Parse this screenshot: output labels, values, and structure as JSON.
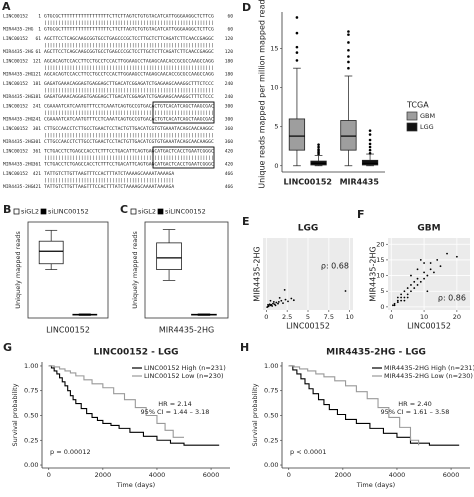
{
  "chart_data": [
    {
      "type": "alignment",
      "label": "A",
      "top_name": "LINC00152",
      "bottom_name": "MIR4435-2HG",
      "match": "||||||||||||||||||||||||||||||||||||||||||||||||||||||||||||",
      "blocks": [
        {
          "start": 1,
          "end": 60,
          "top": "GTGCGCTTTTTTTTTTTTTTTTTCTTCTTAGTCTGTGTACATCATTGGGAAGGCTCTTCG",
          "bottom": "GTGCGCTTTTTTTTTTTTTTTTTCTTCTTAGTCTGTGTACATCATTGGGAAGGCTCTTCG"
        },
        {
          "start": 61,
          "end": 120,
          "top": "AGCTTCCTCAGCAAGCGGTGCCTGAGCCCGCTCCTTGCTCTTCAGATCTTCAACCGAGGC",
          "bottom": "AGCTTCCTCAGCAAGCGGTGCCTGAGCCCGCTCCTTGCTCTTCAGATCTTCAACCGAGGC"
        },
        {
          "start": 121,
          "end": 180,
          "top": "AGCACAGTCCACCTTCCTGCCTCCACTTGGAAGCCTAGAGCAACACCGCGCCAAGCCAGG",
          "bottom": "AGCACAGTCCACCTTCCTGCCTCCACTTGGAAGCCTAGAGCAACACCGCGCCAAGCCAGG"
        },
        {
          "start": 181,
          "end": 240,
          "top": "GAGATGAAACAGGAGTGAGGAGCTTGACATCGGAGATCTGAGAAGCAAAGGCTTTCTCCC",
          "bottom": "GAGATGAAACAGGAGTGAGGAGCTTGACATCGGAGATCTGAGAAGCAAAGGCTTTCTCCC"
        },
        {
          "start": 241,
          "end": 300,
          "top": "CGAAAATCATCAATGTTTCCTCAAATCAGTGCCGTGACACTGTCACATCAGCTAAGCGAC",
          "bottom": "CGAAAATCATCAATGTTTCCTCAAATCAGTGCCGTGACACTGTCACATCAGCTAAGCGAC"
        },
        {
          "start": 301,
          "end": 360,
          "top": "CTTGCCAACCTCTTGCCTGAACTCCTACTGTTGACATCGTGTGAAATACAGCAACAAGGC",
          "bottom": "CTTGCCAACCTCTTGCCTGAACTCCTACTGTTGACATCGTGTGAAATACAGCAACAAGGC"
        },
        {
          "start": 361,
          "end": 420,
          "top": "TCTGACCTCTGAGCCACCTCTTTCCTGACATTCAGTGAGCATGACTCACCTGAATCGGGC",
          "bottom": "TCTGACCTCTGAGCCACCTCTTTCCTGACATTCAGTGAGCATGACTCACCTGAATCGGGC"
        },
        {
          "start": 421,
          "end": 466,
          "top": "TATTGTCTTGTTAAGTTTCCACTTTATCTAAAAGCAAAATAAAAGA",
          "bottom": "TATTGTCTTGTTAAGTTTCCACTTTATCTAAAAGCAAAATAAAAGA"
        }
      ]
    },
    {
      "type": "box",
      "label": "B",
      "ylabel": "Uniquely mapped reads",
      "categories": [
        "LINC00152"
      ],
      "ylim": [
        0,
        11.5
      ],
      "legend": "top",
      "frame": true,
      "series": [
        {
          "name": "siGL2",
          "color": "#ffffff",
          "boxes": [
            {
              "min": 5.8,
              "q1": 6.5,
              "median": 8,
              "q3": 9.2,
              "max": 10.5,
              "outliers": []
            }
          ]
        },
        {
          "name": "siLINC00152",
          "color": "#000000",
          "boxes": [
            {
              "min": 0.3,
              "q1": 0.35,
              "median": 0.4,
              "q3": 0.45,
              "max": 0.5,
              "outliers": []
            }
          ]
        }
      ]
    },
    {
      "type": "box",
      "label": "C",
      "ylabel": "Uniquely mapped reads",
      "categories": [
        "MIR4435-2HG"
      ],
      "ylim": [
        0,
        11.5
      ],
      "legend": "top",
      "frame": true,
      "series": [
        {
          "name": "siGL2",
          "color": "#ffffff",
          "boxes": [
            {
              "min": 4.5,
              "q1": 5.8,
              "median": 7.2,
              "q3": 9,
              "max": 10.6,
              "outliers": []
            }
          ]
        },
        {
          "name": "siLINC00152",
          "color": "#000000",
          "boxes": [
            {
              "min": 0.3,
              "q1": 0.35,
              "median": 0.4,
              "q3": 0.45,
              "max": 0.5,
              "outliers": []
            }
          ]
        }
      ]
    },
    {
      "type": "box",
      "label": "D",
      "ylabel": "Unique reads mapped per million mapped reads",
      "categories": [
        "LINC00152",
        "MIR4435"
      ],
      "ylim": [
        -0.8,
        19.7
      ],
      "yticks": [
        0,
        5,
        10,
        15
      ],
      "legend": "right",
      "legend_title": "TCGA",
      "frame": false,
      "series": [
        {
          "name": "GBM",
          "color": "#9e9e9e",
          "boxes": [
            {
              "min": 0,
              "q1": 2,
              "median": 3.8,
              "q3": 6,
              "max": 12.5,
              "outliers": [
                13.5,
                14.5,
                15.2,
                17,
                19
              ]
            },
            {
              "min": 0,
              "q1": 2,
              "median": 3.8,
              "q3": 5.8,
              "max": 11.5,
              "outliers": [
                12.5,
                13.3,
                14,
                14.8,
                15.8,
                16.8,
                17.2
              ]
            }
          ]
        },
        {
          "name": "LGG",
          "color": "#111111",
          "boxes": [
            {
              "min": 0,
              "q1": 0.1,
              "median": 0.3,
              "q3": 0.6,
              "max": 1.3,
              "outliers": [
                1.5,
                1.7,
                1.9,
                2.1,
                2.4,
                2.7
              ]
            },
            {
              "min": 0,
              "q1": 0.1,
              "median": 0.3,
              "q3": 0.7,
              "max": 1.5,
              "outliers": [
                1.6,
                2,
                2.4,
                2.8,
                3.3,
                4,
                4.5
              ]
            }
          ]
        }
      ]
    },
    {
      "type": "scatter",
      "label": "E",
      "title": "LGG",
      "xlabel": "LINC00152",
      "ylabel": "MIR4435-2HG",
      "annotation": "ρ: 0.68",
      "xlim": [
        -0.4,
        10.4
      ],
      "xticks": [
        0,
        2.5,
        5,
        7.5,
        10
      ],
      "ylim": [
        -0.5,
        12
      ],
      "background": "#ebebeb",
      "grid": true,
      "color": "#000000",
      "x": [
        0.2,
        0.3,
        0.5,
        0.4,
        0.6,
        0.8,
        1.0,
        1.2,
        1.5,
        1.1,
        0.7,
        0.9,
        1.8,
        2.0,
        2.3,
        2.6,
        0.1,
        0.2,
        1.4,
        3.0,
        2.2,
        3.3,
        0.5,
        9.5,
        1.6
      ],
      "values": [
        0.1,
        0.2,
        0.3,
        0.5,
        0.4,
        0.6,
        0.5,
        0.8,
        0.9,
        0.3,
        0.2,
        0.9,
        1.1,
        0.7,
        1.3,
        1.0,
        0.0,
        0.4,
        0.6,
        1.5,
        3.0,
        1.2,
        1.1,
        2.8,
        1.6
      ]
    },
    {
      "type": "scatter",
      "label": "F",
      "title": "GBM",
      "xlabel": "LINC00152",
      "ylabel": "MIR4435-2HG",
      "annotation": "ρ: 0.86",
      "xlim": [
        -1,
        24
      ],
      "xticks": [
        0,
        10,
        20
      ],
      "ylim": [
        -1,
        22
      ],
      "yticks": [
        0,
        5,
        10,
        15,
        20
      ],
      "background": "#ebebeb",
      "grid": true,
      "color": "#000000",
      "x": [
        1,
        2,
        2,
        3,
        3,
        4,
        4,
        5,
        5,
        6,
        6,
        7,
        7,
        8,
        8,
        9,
        10,
        10,
        11,
        12,
        12,
        13,
        14,
        10,
        15,
        8,
        6,
        17,
        20,
        9,
        1,
        2,
        3,
        0.5,
        4,
        5,
        11
      ],
      "values": [
        1,
        1.5,
        3,
        2,
        4,
        3,
        5,
        4,
        6,
        5,
        7,
        6,
        8,
        7,
        9,
        8,
        9,
        11,
        10,
        12,
        14,
        11,
        15,
        14,
        13,
        12,
        10,
        17,
        16,
        15,
        0.5,
        2,
        3,
        0.5,
        2,
        3,
        5
      ]
    },
    {
      "type": "survival",
      "label": "G",
      "title": "LINC00152 - LGG",
      "xlabel": "Time (days)",
      "ylabel": "Survival probability",
      "xlim": [
        -250,
        6700
      ],
      "xticks": [
        0,
        2000,
        4000,
        6000
      ],
      "ylim": [
        -0.03,
        1.04
      ],
      "yticks": [
        {
          "value": 0,
          "label": "0.00"
        },
        {
          "value": 0.25,
          "label": "0.25"
        },
        {
          "value": 0.5,
          "label": "0.50"
        },
        {
          "value": 0.75,
          "label": "0.75"
        },
        {
          "value": 1,
          "label": "1.00"
        }
      ],
      "annotations": [
        "HR = 2.14",
        "95% CI = 1.44 – 3.18"
      ],
      "pvalue": "p = 0.00012",
      "series": [
        {
          "name": "LINC00152 High (n=231)",
          "color": "#000000",
          "x": [
            0,
            100,
            200,
            300,
            400,
            500,
            600,
            700,
            800,
            900,
            1000,
            1200,
            1400,
            1600,
            1800,
            2000,
            2300,
            2600,
            3000,
            3500,
            4000,
            4500,
            5000,
            5500,
            6300
          ],
          "values": [
            1,
            0.98,
            0.95,
            0.92,
            0.88,
            0.84,
            0.8,
            0.75,
            0.7,
            0.66,
            0.62,
            0.57,
            0.52,
            0.48,
            0.45,
            0.42,
            0.4,
            0.37,
            0.33,
            0.29,
            0.25,
            0.22,
            0.2,
            0.2,
            0.2
          ]
        },
        {
          "name": "LINC00152 Low (n=230)",
          "color": "#999999",
          "x": [
            0,
            200,
            400,
            600,
            800,
            1000,
            1300,
            1600,
            2000,
            2400,
            2800,
            3200,
            3600,
            4000,
            4300,
            4600,
            5000
          ],
          "values": [
            1,
            0.99,
            0.97,
            0.95,
            0.93,
            0.9,
            0.86,
            0.82,
            0.78,
            0.72,
            0.66,
            0.58,
            0.5,
            0.42,
            0.35,
            0.28,
            0.28
          ]
        }
      ]
    },
    {
      "type": "survival",
      "label": "H",
      "title": "MIR4435-2HG - LGG",
      "xlabel": "Time (days)",
      "ylabel": "Survival probability",
      "xlim": [
        -250,
        6700
      ],
      "xticks": [
        0,
        2000,
        4000,
        6000
      ],
      "ylim": [
        -0.03,
        1.04
      ],
      "yticks": [
        {
          "value": 0,
          "label": "0.00"
        },
        {
          "value": 0.25,
          "label": "0.25"
        },
        {
          "value": 0.5,
          "label": "0.50"
        },
        {
          "value": 0.75,
          "label": "0.75"
        },
        {
          "value": 1,
          "label": "1.00"
        }
      ],
      "annotations": [
        "HR = 2.40",
        "95% CI = 1.61 – 3.58"
      ],
      "pvalue": "p < 0.0001",
      "series": [
        {
          "name": "MIR4435-2HG High (n=231)",
          "color": "#000000",
          "x": [
            0,
            150,
            300,
            450,
            600,
            750,
            900,
            1100,
            1300,
            1500,
            1800,
            2100,
            2500,
            3000,
            3500,
            4000,
            4500,
            5200,
            6300
          ],
          "values": [
            1,
            0.96,
            0.92,
            0.87,
            0.82,
            0.77,
            0.72,
            0.66,
            0.61,
            0.56,
            0.51,
            0.46,
            0.42,
            0.37,
            0.32,
            0.28,
            0.22,
            0.2,
            0.2
          ]
        },
        {
          "name": "MIR4435-2HG Low (n=230)",
          "color": "#999999",
          "x": [
            0,
            200,
            400,
            700,
            1000,
            1300,
            1700,
            2100,
            2500,
            2900,
            3300,
            3700,
            4100,
            4500,
            4800
          ],
          "values": [
            1,
            0.99,
            0.97,
            0.95,
            0.92,
            0.89,
            0.85,
            0.8,
            0.74,
            0.67,
            0.58,
            0.48,
            0.38,
            0.25,
            0.2
          ]
        }
      ]
    }
  ]
}
